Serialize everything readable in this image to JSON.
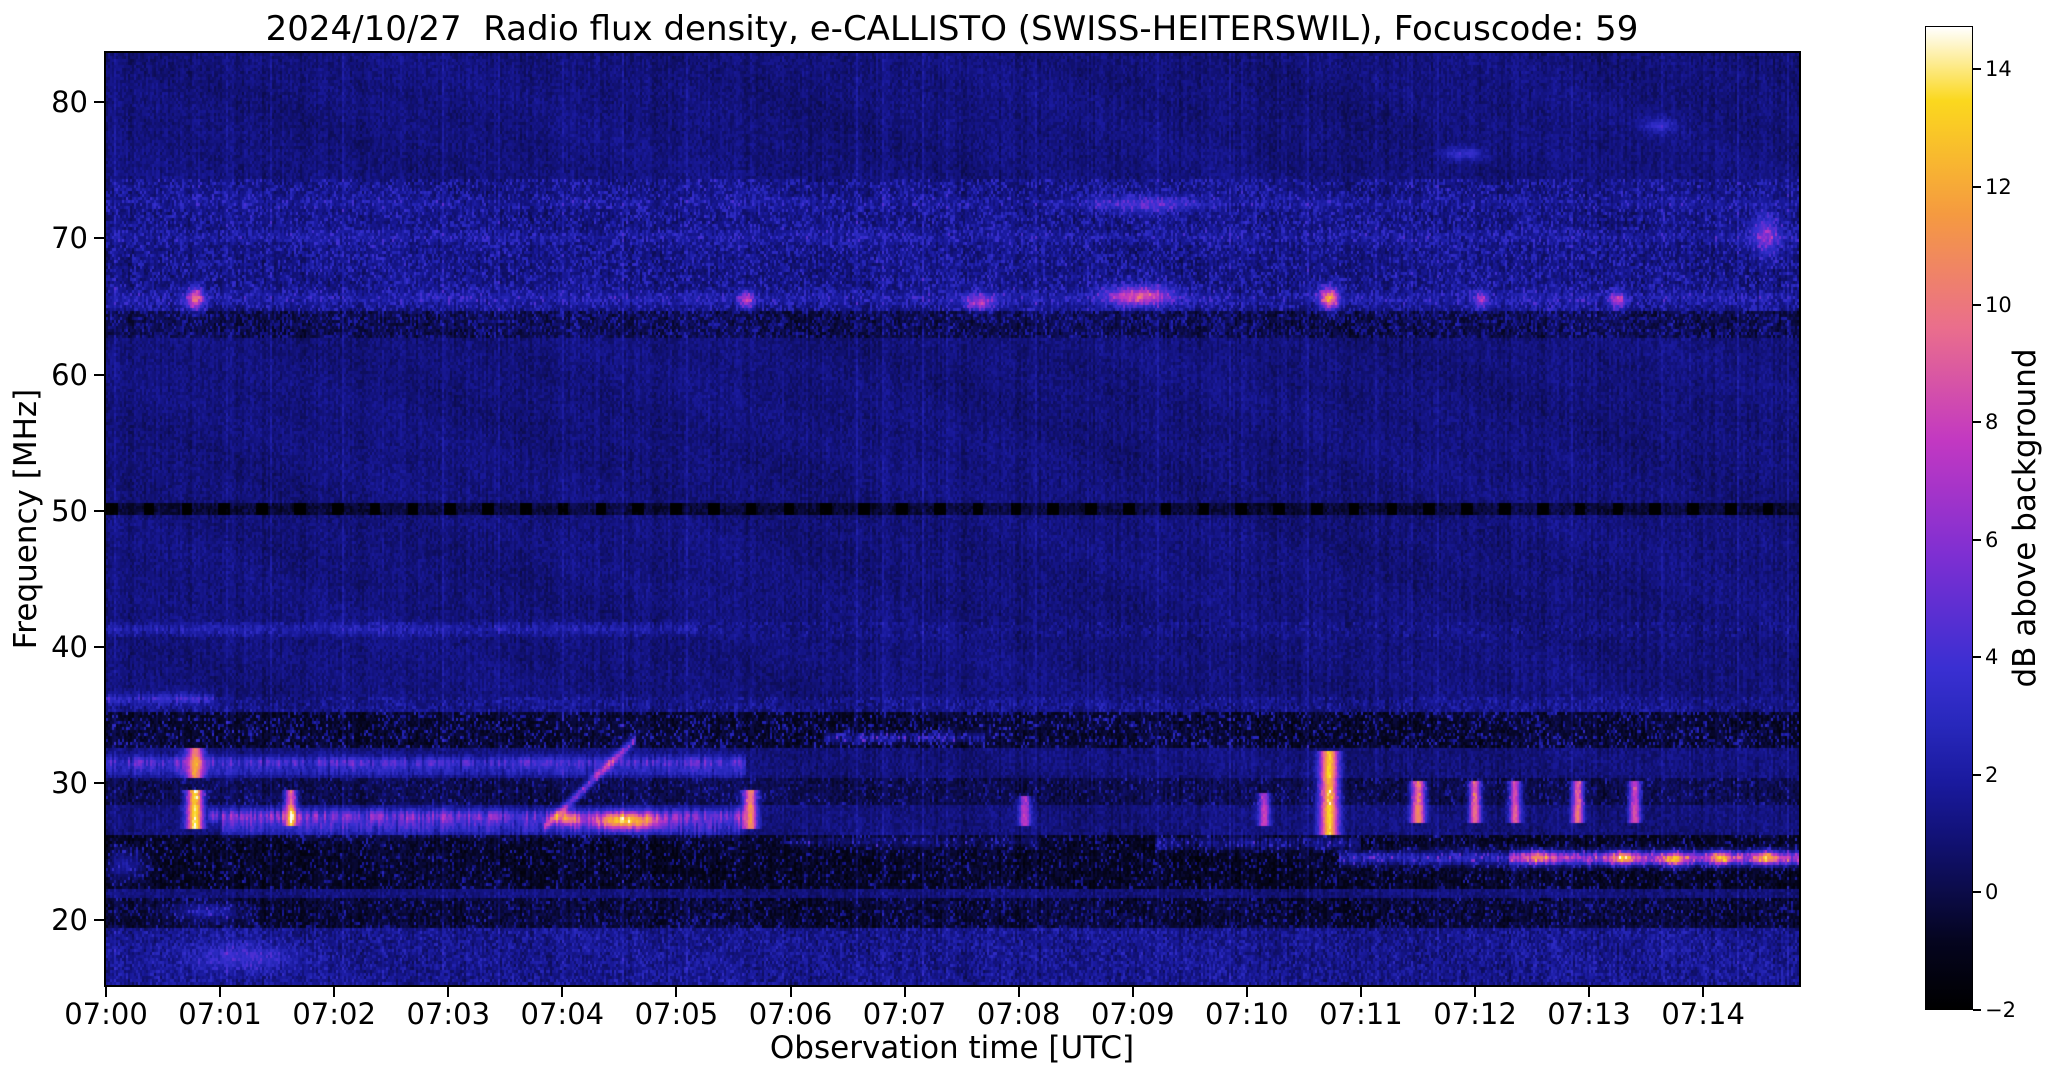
{
  "figure": {
    "background": "#ffffff"
  },
  "chart_data": {
    "type": "heatmap",
    "subtype": "radio-spectrogram",
    "title": "2024/10/27  Radio flux density, e-CALLISTO (SWISS-HEITERSWIL), Focuscode: 59",
    "xlabel": "Observation time [UTC]",
    "ylabel": "Frequency [MHz]",
    "colorbar_label": "dB above background",
    "x_ticks": [
      "07:00",
      "07:01",
      "07:02",
      "07:03",
      "07:04",
      "07:05",
      "07:06",
      "07:07",
      "07:08",
      "07:09",
      "07:10",
      "07:11",
      "07:12",
      "07:13",
      "07:14"
    ],
    "y_ticks": [
      20,
      30,
      40,
      50,
      60,
      70,
      80
    ],
    "x_range_minutes": [
      0,
      14.84
    ],
    "y_range_mhz": [
      15.2,
      83.6
    ],
    "colorbar_ticks": [
      14,
      12,
      10,
      8,
      6,
      4,
      2,
      0,
      -2
    ],
    "colormap": {
      "vmin": -2,
      "vmax": 14.74,
      "stops": [
        [
          0.0,
          "#000000"
        ],
        [
          0.07,
          "#050520"
        ],
        [
          0.116,
          "#0b0b46"
        ],
        [
          0.18,
          "#12127a"
        ],
        [
          0.231,
          "#1a1a9e"
        ],
        [
          0.29,
          "#2828bc"
        ],
        [
          0.347,
          "#3a2fd2"
        ],
        [
          0.462,
          "#7e2fd2"
        ],
        [
          0.578,
          "#c238c2"
        ],
        [
          0.694,
          "#ea6e8c"
        ],
        [
          0.809,
          "#f59a40"
        ],
        [
          0.925,
          "#fbd81e"
        ],
        [
          1.0,
          "#ffffff"
        ]
      ]
    },
    "background_model": {
      "seed": 77,
      "base": 0.15,
      "stripe": 0.75,
      "noise": 1.15,
      "fringe": 0.22
    },
    "features": [
      {
        "kind": "hband",
        "f1": 62.6,
        "f2": 74.4,
        "t1": 0,
        "t2": 14.84,
        "amp": 2.2,
        "speckle": 0.35
      },
      {
        "kind": "hband",
        "f1": 62.8,
        "f2": 64.6,
        "t1": 0,
        "t2": 14.84,
        "amp": -1.1
      },
      {
        "kind": "hline",
        "f": 65.6,
        "t1": 0,
        "t2": 14.84,
        "amp": 1.4,
        "w": 0.5,
        "flicker": 1
      },
      {
        "kind": "hline",
        "f": 70.1,
        "t1": 0,
        "t2": 14.84,
        "amp": 1.0,
        "w": 0.45,
        "flicker": 1
      },
      {
        "kind": "hline",
        "f": 72.6,
        "t1": 0,
        "t2": 14.84,
        "amp": 0.8,
        "w": 0.4,
        "flicker": 1
      },
      {
        "kind": "blob",
        "t": 0.78,
        "f": 65.6,
        "dt": 0.07,
        "df": 0.8,
        "amp": 8
      },
      {
        "kind": "blob",
        "t": 5.62,
        "f": 65.5,
        "dt": 0.06,
        "df": 0.6,
        "amp": 6
      },
      {
        "kind": "blob",
        "t": 7.65,
        "f": 65.3,
        "dt": 0.12,
        "df": 0.6,
        "amp": 5
      },
      {
        "kind": "blob",
        "t": 9.05,
        "f": 65.8,
        "dt": 0.28,
        "df": 0.7,
        "amp": 7
      },
      {
        "kind": "blob",
        "t": 9.1,
        "f": 72.5,
        "dt": 0.5,
        "df": 0.6,
        "amp": 2.6
      },
      {
        "kind": "blob",
        "t": 10.72,
        "f": 65.6,
        "dt": 0.08,
        "df": 0.8,
        "amp": 9
      },
      {
        "kind": "blob",
        "t": 12.05,
        "f": 65.5,
        "dt": 0.06,
        "df": 0.6,
        "amp": 5
      },
      {
        "kind": "blob",
        "t": 13.25,
        "f": 65.5,
        "dt": 0.07,
        "df": 0.6,
        "amp": 5
      },
      {
        "kind": "blob",
        "t": 14.55,
        "f": 70.2,
        "dt": 0.12,
        "df": 1.4,
        "amp": 4
      },
      {
        "kind": "blob",
        "t": 11.9,
        "f": 76.2,
        "dt": 0.18,
        "df": 0.5,
        "amp": 2.6
      },
      {
        "kind": "blob",
        "t": 13.6,
        "f": 78.3,
        "dt": 0.15,
        "df": 0.5,
        "amp": 2.2
      },
      {
        "kind": "dashline",
        "f": 50.1,
        "w": 0.4,
        "amp": -1.3,
        "dashamp": -2.2,
        "period": 0.33,
        "duty": 0.3
      },
      {
        "kind": "hline",
        "f": 41.3,
        "t1": 0,
        "t2": 5.2,
        "amp": 1.7,
        "w": 0.4,
        "flicker": 1
      },
      {
        "kind": "hband",
        "f1": 40.7,
        "f2": 41.9,
        "t1": 0,
        "t2": 14.84,
        "amp": 1.0,
        "speckle": 0.3
      },
      {
        "kind": "hband",
        "f1": 35.2,
        "f2": 36.4,
        "t1": 0,
        "t2": 14.84,
        "amp": 1.3,
        "speckle": 0.45
      },
      {
        "kind": "hband",
        "f1": 32.6,
        "f2": 35.2,
        "t1": 0,
        "t2": 14.84,
        "amp": -1.6
      },
      {
        "kind": "hband",
        "f1": 32.6,
        "f2": 35.2,
        "t1": 0,
        "t2": 14.84,
        "amp": 3.4,
        "speckle": 0.22
      },
      {
        "kind": "hline",
        "f": 36.2,
        "t1": 0,
        "t2": 0.95,
        "amp": 3.2,
        "w": 0.4,
        "flicker": 1
      },
      {
        "kind": "hline",
        "f": 33.3,
        "t1": 6.3,
        "t2": 7.7,
        "amp": 4.2,
        "w": 0.35,
        "flicker": 1
      },
      {
        "kind": "hline",
        "f": 31.5,
        "t1": 0,
        "t2": 5.62,
        "amp": 4.6,
        "w": 0.45,
        "flicker": 1
      },
      {
        "kind": "hline",
        "f": 30.8,
        "t1": 0,
        "t2": 5.62,
        "amp": 2.2,
        "w": 0.35,
        "flicker": 1
      },
      {
        "kind": "hband",
        "f1": 28.4,
        "f2": 30.4,
        "t1": 0,
        "t2": 14.84,
        "amp": -1.0
      },
      {
        "kind": "hband",
        "f1": 28.4,
        "f2": 30.4,
        "t1": 0,
        "t2": 14.84,
        "amp": 2.2,
        "speckle": 0.15
      },
      {
        "kind": "hline",
        "f": 27.6,
        "t1": 0.9,
        "t2": 5.62,
        "amp": 5.6,
        "w": 0.5,
        "flicker": 1
      },
      {
        "kind": "hline",
        "f": 26.8,
        "t1": 1.0,
        "t2": 5.62,
        "amp": 3.6,
        "w": 0.65,
        "flicker": 1
      },
      {
        "kind": "blob",
        "t": 4.05,
        "f": 27.4,
        "dt": 0.1,
        "df": 0.5,
        "amp": 7
      },
      {
        "kind": "blob",
        "t": 4.55,
        "f": 27.2,
        "dt": 0.3,
        "df": 0.6,
        "amp": 9
      },
      {
        "kind": "diag",
        "t1": 3.85,
        "f1": 26.8,
        "t2": 4.65,
        "f2": 33.3,
        "amp": 5,
        "w": 0.4
      },
      {
        "kind": "hband",
        "f1": 22.3,
        "f2": 26.3,
        "t1": 0,
        "t2": 14.84,
        "amp": -1.8
      },
      {
        "kind": "hband",
        "f1": 22.3,
        "f2": 26.3,
        "t1": 0,
        "t2": 14.84,
        "amp": 3.0,
        "speckle": 0.16
      },
      {
        "kind": "blob",
        "t": 0.18,
        "f": 24.0,
        "dt": 0.16,
        "df": 1.1,
        "amp": 3
      },
      {
        "kind": "hline",
        "f": 25.7,
        "t1": 6.0,
        "t2": 8.2,
        "amp": 2.2,
        "w": 0.4,
        "flicker": 1
      },
      {
        "kind": "hline",
        "f": 25.6,
        "t1": 9.2,
        "t2": 11.0,
        "amp": 3.2,
        "w": 0.45,
        "flicker": 1
      },
      {
        "kind": "hline",
        "f": 24.5,
        "t1": 10.8,
        "t2": 12.3,
        "amp": 4.5,
        "w": 0.5,
        "flicker": 0.6
      },
      {
        "kind": "hline",
        "f": 24.5,
        "t1": 12.3,
        "t2": 14.84,
        "amp": 8.5,
        "w": 0.5,
        "flicker": 0.45
      },
      {
        "kind": "blob",
        "t": 12.55,
        "f": 24.6,
        "dt": 0.15,
        "df": 0.5,
        "amp": 4
      },
      {
        "kind": "blob",
        "t": 13.3,
        "f": 24.5,
        "dt": 0.12,
        "df": 0.5,
        "amp": 6
      },
      {
        "kind": "blob",
        "t": 13.75,
        "f": 24.4,
        "dt": 0.1,
        "df": 0.5,
        "amp": 6.5
      },
      {
        "kind": "blob",
        "t": 14.15,
        "f": 24.5,
        "dt": 0.1,
        "df": 0.5,
        "amp": 6
      },
      {
        "kind": "blob",
        "t": 14.55,
        "f": 24.5,
        "dt": 0.12,
        "df": 0.5,
        "amp": 6.5
      },
      {
        "kind": "hband",
        "f1": 19.3,
        "f2": 21.6,
        "t1": 0,
        "t2": 14.84,
        "amp": -1.5
      },
      {
        "kind": "hband",
        "f1": 19.3,
        "f2": 21.6,
        "t1": 0,
        "t2": 14.84,
        "amp": 2.6,
        "speckle": 0.2
      },
      {
        "kind": "blob",
        "t": 0.9,
        "f": 20.6,
        "dt": 0.3,
        "df": 0.7,
        "amp": 2.6
      },
      {
        "kind": "hband",
        "f1": 15.2,
        "f2": 19.3,
        "t1": 0,
        "t2": 14.84,
        "amp": 1.5,
        "speckle": 0.5
      },
      {
        "kind": "blob",
        "t": 1.2,
        "f": 17.2,
        "dt": 0.45,
        "df": 1.1,
        "amp": 2.2
      },
      {
        "kind": "vtick",
        "t": 0.78,
        "f1": 26.8,
        "f2": 29.2,
        "dt": 0.07,
        "amp": 13
      },
      {
        "kind": "vtick",
        "t": 0.78,
        "f1": 30.6,
        "f2": 32.3,
        "dt": 0.07,
        "amp": 9
      },
      {
        "kind": "vtick",
        "t": 1.62,
        "f1": 27.0,
        "f2": 29.2,
        "dt": 0.05,
        "amp": 9
      },
      {
        "kind": "vtick",
        "t": 5.65,
        "f1": 26.8,
        "f2": 29.2,
        "dt": 0.06,
        "amp": 10
      },
      {
        "kind": "vtick",
        "t": 8.05,
        "f1": 27.2,
        "f2": 28.9,
        "dt": 0.05,
        "amp": 7
      },
      {
        "kind": "vtick",
        "t": 10.15,
        "f1": 27.0,
        "f2": 29.0,
        "dt": 0.05,
        "amp": 7
      },
      {
        "kind": "vtick",
        "t": 10.72,
        "f1": 26.5,
        "f2": 32.0,
        "dt": 0.08,
        "amp": 12
      },
      {
        "kind": "vtick",
        "t": 11.5,
        "f1": 27.4,
        "f2": 30.0,
        "dt": 0.06,
        "amp": 10
      },
      {
        "kind": "vtick",
        "t": 12.0,
        "f1": 27.4,
        "f2": 30.0,
        "dt": 0.05,
        "amp": 9
      },
      {
        "kind": "vtick",
        "t": 12.35,
        "f1": 27.4,
        "f2": 29.8,
        "dt": 0.05,
        "amp": 8
      },
      {
        "kind": "vtick",
        "t": 12.9,
        "f1": 27.4,
        "f2": 30.0,
        "dt": 0.05,
        "amp": 9
      },
      {
        "kind": "vtick",
        "t": 13.4,
        "f1": 27.4,
        "f2": 29.8,
        "dt": 0.05,
        "amp": 8
      }
    ]
  }
}
